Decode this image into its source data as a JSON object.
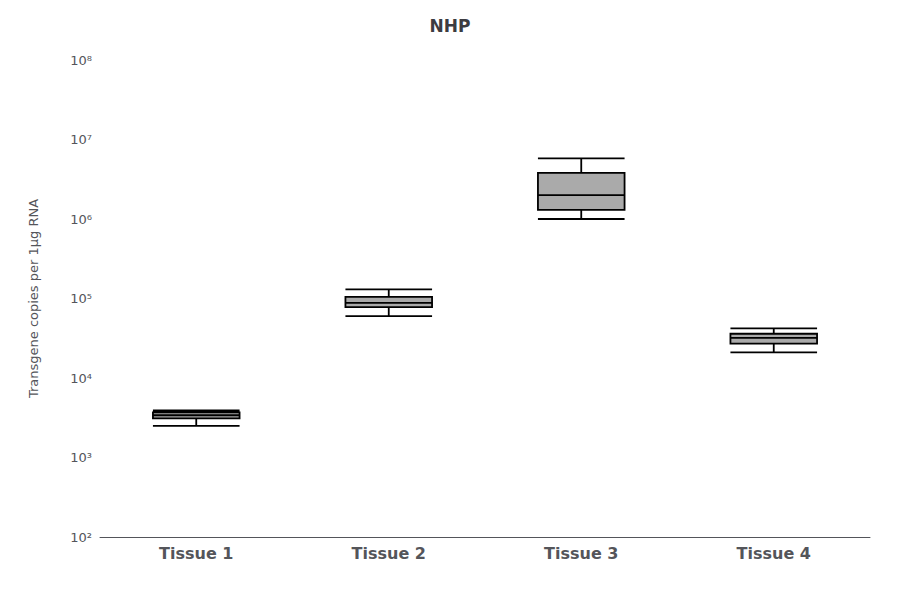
{
  "chart_data": {
    "type": "box",
    "title": "NHP",
    "ylabel": "Transgene copies per 1μg RNA",
    "categories": [
      "Tissue 1",
      "Tissue 2",
      "Tissue 3",
      "Tissue 4"
    ],
    "boxes": [
      {
        "low": 2500,
        "q1": 3100,
        "median": 3400,
        "q3": 3700,
        "high": 3900
      },
      {
        "low": 60000,
        "q1": 78000,
        "median": 88000,
        "q3": 105000,
        "high": 130000
      },
      {
        "low": 1000000,
        "q1": 1300000,
        "median": 2000000,
        "q3": 3800000,
        "high": 5800000
      },
      {
        "low": 21000,
        "q1": 27000,
        "median": 32000,
        "q3": 36000,
        "high": 42000
      }
    ],
    "color": "#aaaaaa",
    "log": "y",
    "ylim": [
      100,
      100000000
    ],
    "yticks": [
      {
        "value": 100,
        "label": "10²"
      },
      {
        "value": 1000,
        "label": "10³"
      },
      {
        "value": 10000,
        "label": "10⁴"
      },
      {
        "value": 100000,
        "label": "10⁵"
      },
      {
        "value": 1000000,
        "label": "10⁶"
      },
      {
        "value": 10000000,
        "label": "10⁷"
      },
      {
        "value": 100000000,
        "label": "10⁸"
      }
    ],
    "grid": false
  }
}
